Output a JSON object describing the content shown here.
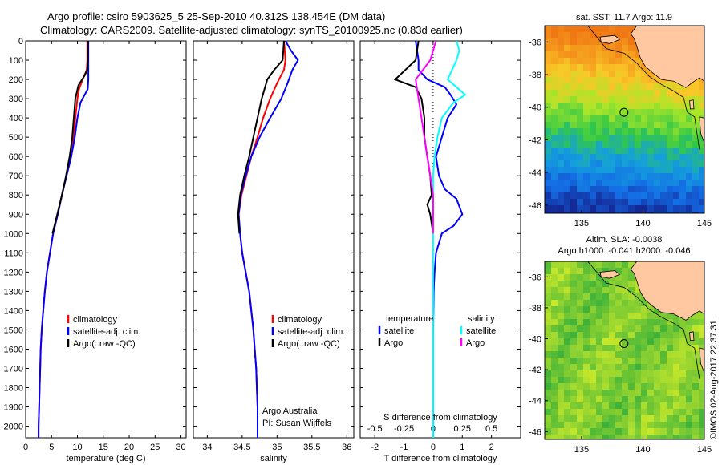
{
  "header": {
    "title_line1": "Argo profile: csiro 5903625_5 25-Sep-2010 40.312S 138.454E (DM data)",
    "title_line2": "Climatology: CARS2009. Satellite-adjusted climatology: synTS_20100925.nc (0.83d earlier)"
  },
  "colors": {
    "climatology": "#ff0000",
    "satellite": "#0000ff",
    "argo": "#000000",
    "satellite_salinity": "#00ffff",
    "argo_salinity": "#ff00ff",
    "land": "#ffc8a0"
  },
  "chart_data": [
    {
      "type": "line",
      "panel": "temperature",
      "xlabel": "temperature (deg C)",
      "xlim": [
        0,
        31
      ],
      "xticks": [
        "0",
        "5",
        "10",
        "15",
        "20",
        "25",
        "30"
      ],
      "ylim": [
        2060,
        0
      ],
      "yticks": [
        "0",
        "100",
        "200",
        "300",
        "400",
        "500",
        "600",
        "700",
        "800",
        "900",
        "1000",
        "1100",
        "1200",
        "1300",
        "1400",
        "1500",
        "1600",
        "1700",
        "1800",
        "1900",
        "2000"
      ],
      "legend": [
        "climatology",
        "satellite-adj. clim.",
        "Argo(..raw -QC)"
      ],
      "series": [
        {
          "name": "climatology",
          "color": "#ff0000",
          "points": [
            [
              11.9,
              0
            ],
            [
              11.9,
              100
            ],
            [
              11.8,
              150
            ],
            [
              11.0,
              200
            ],
            [
              10.3,
              250
            ],
            [
              10.0,
              300
            ],
            [
              9.6,
              400
            ],
            [
              9.3,
              500
            ],
            [
              8.8,
              600
            ],
            [
              7.9,
              700
            ],
            [
              7.0,
              800
            ],
            [
              6.2,
              900
            ],
            [
              5.3,
              1000
            ],
            [
              4.7,
              1100
            ],
            [
              4.1,
              1200
            ],
            [
              3.7,
              1300
            ],
            [
              3.4,
              1400
            ],
            [
              3.1,
              1500
            ],
            [
              2.9,
              1600
            ],
            [
              2.8,
              1700
            ],
            [
              2.7,
              1800
            ],
            [
              2.6,
              1900
            ],
            [
              2.5,
              2000
            ],
            [
              2.5,
              2060
            ]
          ]
        },
        {
          "name": "satellite-adj. clim.",
          "color": "#0000ff",
          "points": [
            [
              12.1,
              0
            ],
            [
              12.1,
              100
            ],
            [
              12.1,
              200
            ],
            [
              12.0,
              250
            ],
            [
              11.4,
              280
            ],
            [
              10.6,
              320
            ],
            [
              10.0,
              400
            ],
            [
              9.5,
              500
            ],
            [
              8.8,
              600
            ],
            [
              7.9,
              700
            ],
            [
              7.0,
              800
            ],
            [
              6.2,
              900
            ],
            [
              5.3,
              1000
            ],
            [
              4.7,
              1100
            ],
            [
              4.1,
              1200
            ],
            [
              3.7,
              1300
            ],
            [
              3.4,
              1400
            ],
            [
              3.1,
              1500
            ],
            [
              2.9,
              1600
            ],
            [
              2.8,
              1700
            ],
            [
              2.7,
              1800
            ],
            [
              2.6,
              1900
            ],
            [
              2.5,
              2000
            ],
            [
              2.5,
              2060
            ]
          ]
        },
        {
          "name": "Argo(..raw -QC)",
          "color": "#000000",
          "points": [
            [
              12.0,
              0
            ],
            [
              12.0,
              100
            ],
            [
              11.9,
              150
            ],
            [
              11.4,
              180
            ],
            [
              10.2,
              230
            ],
            [
              9.6,
              300
            ],
            [
              9.3,
              400
            ],
            [
              9.0,
              500
            ],
            [
              8.5,
              600
            ],
            [
              7.8,
              700
            ],
            [
              7.0,
              800
            ],
            [
              6.1,
              900
            ],
            [
              5.2,
              1000
            ]
          ]
        }
      ]
    },
    {
      "type": "line",
      "panel": "salinity",
      "xlabel": "salinity",
      "xlim": [
        33.8,
        36.1
      ],
      "xticks": [
        "34",
        "34.5",
        "35",
        "35.5",
        "36"
      ],
      "ylim": [
        2060,
        0
      ],
      "legend": [
        "climatology",
        "satellite-adj. clim.",
        "Argo(..raw -QC)"
      ],
      "annotation": [
        "Argo Australia",
        "PI: Susan Wijffels"
      ],
      "series": [
        {
          "name": "climatology",
          "color": "#ff0000",
          "points": [
            [
              35.1,
              0
            ],
            [
              35.12,
              100
            ],
            [
              35.1,
              150
            ],
            [
              35.0,
              220
            ],
            [
              34.9,
              300
            ],
            [
              34.8,
              400
            ],
            [
              34.72,
              500
            ],
            [
              34.63,
              600
            ],
            [
              34.56,
              700
            ],
            [
              34.49,
              800
            ],
            [
              34.45,
              900
            ],
            [
              34.47,
              1000
            ],
            [
              34.5,
              1100
            ],
            [
              34.55,
              1200
            ],
            [
              34.6,
              1300
            ],
            [
              34.63,
              1400
            ],
            [
              34.66,
              1500
            ],
            [
              34.68,
              1600
            ],
            [
              34.7,
              1700
            ],
            [
              34.71,
              1800
            ],
            [
              34.72,
              1900
            ],
            [
              34.72,
              2000
            ],
            [
              34.72,
              2060
            ]
          ]
        },
        {
          "name": "satellite-adj. clim.",
          "color": "#0000ff",
          "points": [
            [
              35.12,
              0
            ],
            [
              35.2,
              50
            ],
            [
              35.3,
              100
            ],
            [
              35.22,
              150
            ],
            [
              35.15,
              220
            ],
            [
              35.06,
              300
            ],
            [
              34.9,
              400
            ],
            [
              34.75,
              500
            ],
            [
              34.63,
              600
            ],
            [
              34.55,
              700
            ],
            [
              34.48,
              800
            ],
            [
              34.45,
              900
            ],
            [
              34.47,
              1000
            ],
            [
              34.5,
              1100
            ],
            [
              34.55,
              1200
            ],
            [
              34.6,
              1300
            ],
            [
              34.63,
              1400
            ],
            [
              34.66,
              1500
            ],
            [
              34.68,
              1600
            ],
            [
              34.7,
              1700
            ],
            [
              34.71,
              1800
            ],
            [
              34.72,
              1900
            ],
            [
              34.72,
              2000
            ],
            [
              34.72,
              2060
            ]
          ]
        },
        {
          "name": "Argo(..raw -QC)",
          "color": "#000000",
          "points": [
            [
              35.1,
              0
            ],
            [
              35.08,
              100
            ],
            [
              34.96,
              150
            ],
            [
              34.86,
              200
            ],
            [
              34.78,
              300
            ],
            [
              34.72,
              400
            ],
            [
              34.66,
              500
            ],
            [
              34.6,
              600
            ],
            [
              34.53,
              700
            ],
            [
              34.47,
              800
            ],
            [
              34.44,
              900
            ],
            [
              34.46,
              1000
            ]
          ]
        }
      ]
    },
    {
      "type": "line",
      "panel": "difference",
      "xlabel": "T difference from climatology",
      "xlabel_top": "S difference from climatology",
      "xlim": [
        -2.5,
        3.0
      ],
      "xticks": [
        "-2",
        "-1",
        "0",
        "1",
        "2"
      ],
      "xticks_top": [
        "-0.5",
        "-0.25",
        "0",
        "0.25",
        "0.5"
      ],
      "ylim": [
        2060,
        0
      ],
      "legend_titles": [
        "temperature",
        "salinity"
      ],
      "legend": [
        "satellite",
        "Argo",
        "satellite",
        "Argo"
      ],
      "series": [
        {
          "name": "satellite",
          "color": "#0000ff",
          "points": [
            [
              -0.6,
              0
            ],
            [
              -0.5,
              100
            ],
            [
              -0.5,
              150
            ],
            [
              -0.2,
              200
            ],
            [
              0.4,
              240
            ],
            [
              0.6,
              280
            ],
            [
              0.8,
              330
            ],
            [
              0.5,
              400
            ],
            [
              0.3,
              500
            ],
            [
              0.1,
              600
            ],
            [
              0.2,
              700
            ],
            [
              0.4,
              770
            ],
            [
              0.8,
              820
            ],
            [
              1.0,
              900
            ],
            [
              0.7,
              960
            ],
            [
              0.3,
              1000
            ],
            [
              0.1,
              1100
            ],
            [
              0.05,
              1200
            ],
            [
              0.02,
              1300
            ],
            [
              0.01,
              1400
            ],
            [
              0.0,
              1500
            ],
            [
              0.0,
              2060
            ]
          ]
        },
        {
          "name": "Argo",
          "color": "#000000",
          "points": [
            [
              -0.5,
              0
            ],
            [
              -0.6,
              100
            ],
            [
              -1.3,
              200
            ],
            [
              -0.6,
              240
            ],
            [
              -0.4,
              300
            ],
            [
              -0.3,
              400
            ],
            [
              -0.3,
              500
            ],
            [
              -0.2,
              600
            ],
            [
              -0.1,
              700
            ],
            [
              -0.05,
              800
            ],
            [
              -0.2,
              850
            ],
            [
              -0.1,
              900
            ],
            [
              -0.05,
              950
            ],
            [
              0.0,
              1000
            ]
          ]
        },
        {
          "name": "satellite",
          "color": "#00ffff",
          "points": [
            [
              0.8,
              0
            ],
            [
              0.9,
              50
            ],
            [
              0.8,
              100
            ],
            [
              0.5,
              200
            ],
            [
              1.1,
              280
            ],
            [
              0.7,
              320
            ],
            [
              0.3,
              400
            ],
            [
              0.15,
              500
            ],
            [
              0.05,
              600
            ],
            [
              0.0,
              700
            ],
            [
              0.0,
              2060
            ]
          ]
        },
        {
          "name": "Argo",
          "color": "#ff00ff",
          "points": [
            [
              0.1,
              0
            ],
            [
              -0.1,
              100
            ],
            [
              -0.6,
              200
            ],
            [
              -0.5,
              300
            ],
            [
              -0.4,
              400
            ],
            [
              -0.3,
              500
            ],
            [
              -0.2,
              600
            ],
            [
              -0.1,
              700
            ],
            [
              0.0,
              800
            ],
            [
              0.0,
              900
            ],
            [
              0.0,
              1000
            ]
          ]
        }
      ]
    },
    {
      "type": "heatmap",
      "panel": "sst_map",
      "title": "sat. SST: 11.7  Argo: 11.9",
      "xlim": [
        132,
        145
      ],
      "ylim": [
        -46.5,
        -35
      ],
      "xticks": [
        "135",
        "140",
        "145"
      ],
      "yticks": [
        "-36",
        "-38",
        "-40",
        "-42",
        "-44",
        "-46"
      ],
      "marker": {
        "lon": 138.454,
        "lat": -40.312
      }
    },
    {
      "type": "heatmap",
      "panel": "sla_map",
      "title_line1": "Altim. SLA: -0.0038",
      "title_line2": "Argo h1000: -0.041 h2000: -0.046",
      "xlim": [
        132,
        145
      ],
      "ylim": [
        -46.5,
        -35
      ],
      "xticks": [
        "135",
        "140",
        "145"
      ],
      "yticks": [
        "-36",
        "-38",
        "-40",
        "-42",
        "-44",
        "-46"
      ],
      "marker": {
        "lon": 138.454,
        "lat": -40.312
      }
    }
  ],
  "credit": "©IMOS 02-Aug-2017 22:37:31"
}
